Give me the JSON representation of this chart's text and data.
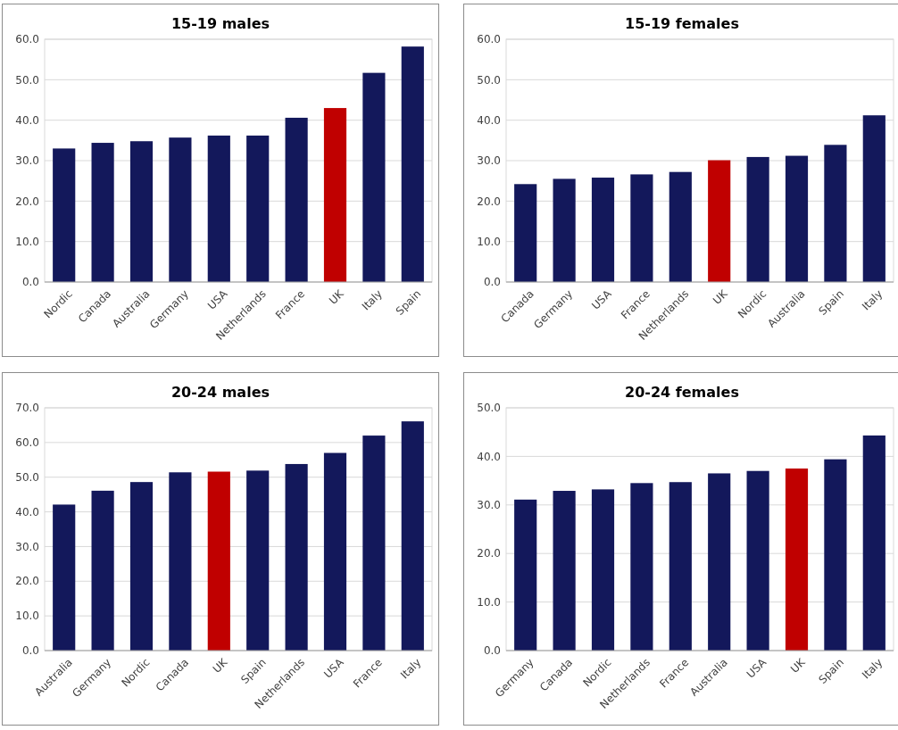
{
  "chart_data": [
    {
      "type": "bar",
      "title": "15-19 males",
      "categories": [
        "Nordic",
        "Canada",
        "Australia",
        "Germany",
        "USA",
        "Netherlands",
        "France",
        "UK",
        "Italy",
        "Spain"
      ],
      "values": [
        33.0,
        34.4,
        34.8,
        35.7,
        36.2,
        36.2,
        40.6,
        43.0,
        51.7,
        58.2
      ],
      "colors": [
        "#13185b",
        "#13185b",
        "#13185b",
        "#13185b",
        "#13185b",
        "#13185b",
        "#13185b",
        "#c00000",
        "#13185b",
        "#13185b"
      ],
      "ylim": [
        0,
        60
      ],
      "yticks": [
        {
          "value": 0,
          "label": "0.0"
        },
        {
          "value": 10,
          "label": "10.0"
        },
        {
          "value": 20,
          "label": "20.0"
        },
        {
          "value": 30,
          "label": "30.0"
        },
        {
          "value": 40,
          "label": "40.0"
        },
        {
          "value": 50,
          "label": "50.0"
        },
        {
          "value": 60,
          "label": "60.0"
        }
      ],
      "grid": "y"
    },
    {
      "type": "bar",
      "title": "15-19 females",
      "categories": [
        "Canada",
        "Germany",
        "USA",
        "France",
        "Netherlands",
        "UK",
        "Nordic",
        "Australia",
        "Spain",
        "Italy"
      ],
      "values": [
        24.2,
        25.5,
        25.8,
        26.6,
        27.2,
        30.1,
        30.9,
        31.2,
        33.9,
        41.2
      ],
      "colors": [
        "#13185b",
        "#13185b",
        "#13185b",
        "#13185b",
        "#13185b",
        "#c00000",
        "#13185b",
        "#13185b",
        "#13185b",
        "#13185b"
      ],
      "ylim": [
        0,
        60
      ],
      "yticks": [
        {
          "value": 0,
          "label": "0.0"
        },
        {
          "value": 10,
          "label": "10.0"
        },
        {
          "value": 20,
          "label": "20.0"
        },
        {
          "value": 30,
          "label": "30.0"
        },
        {
          "value": 40,
          "label": "40.0"
        },
        {
          "value": 50,
          "label": "50.0"
        },
        {
          "value": 60,
          "label": "60.0"
        }
      ],
      "grid": "y"
    },
    {
      "type": "bar",
      "title": "20-24 males",
      "categories": [
        "Australia",
        "Germany",
        "Nordic",
        "Canada",
        "UK",
        "Spain",
        "Netherlands",
        "USA",
        "France",
        "Italy"
      ],
      "values": [
        42.1,
        46.1,
        48.6,
        51.4,
        51.6,
        51.9,
        53.8,
        57.0,
        62.0,
        66.1
      ],
      "colors": [
        "#13185b",
        "#13185b",
        "#13185b",
        "#13185b",
        "#c00000",
        "#13185b",
        "#13185b",
        "#13185b",
        "#13185b",
        "#13185b"
      ],
      "ylim": [
        0,
        70
      ],
      "yticks": [
        {
          "value": 0,
          "label": "0.0"
        },
        {
          "value": 10,
          "label": "10.0"
        },
        {
          "value": 20,
          "label": "20.0"
        },
        {
          "value": 30,
          "label": "30.0"
        },
        {
          "value": 40,
          "label": "40.0"
        },
        {
          "value": 50,
          "label": "50.0"
        },
        {
          "value": 60,
          "label": "60.0"
        },
        {
          "value": 70,
          "label": "70.0"
        }
      ],
      "grid": "y"
    },
    {
      "type": "bar",
      "title": "20-24 females",
      "categories": [
        "Germany",
        "Canada",
        "Nordic",
        "Netherlands",
        "France",
        "Australia",
        "USA",
        "UK",
        "Spain",
        "Italy"
      ],
      "values": [
        31.1,
        32.9,
        33.2,
        34.5,
        34.7,
        36.5,
        37.0,
        37.5,
        39.4,
        44.3
      ],
      "colors": [
        "#13185b",
        "#13185b",
        "#13185b",
        "#13185b",
        "#13185b",
        "#13185b",
        "#13185b",
        "#c00000",
        "#13185b",
        "#13185b"
      ],
      "ylim": [
        0,
        50
      ],
      "yticks": [
        {
          "value": 0,
          "label": "0.0"
        },
        {
          "value": 10,
          "label": "10.0"
        },
        {
          "value": 20,
          "label": "20.0"
        },
        {
          "value": 30,
          "label": "30.0"
        },
        {
          "value": 40,
          "label": "40.0"
        },
        {
          "value": 50,
          "label": "50.0"
        }
      ],
      "grid": "y"
    }
  ]
}
